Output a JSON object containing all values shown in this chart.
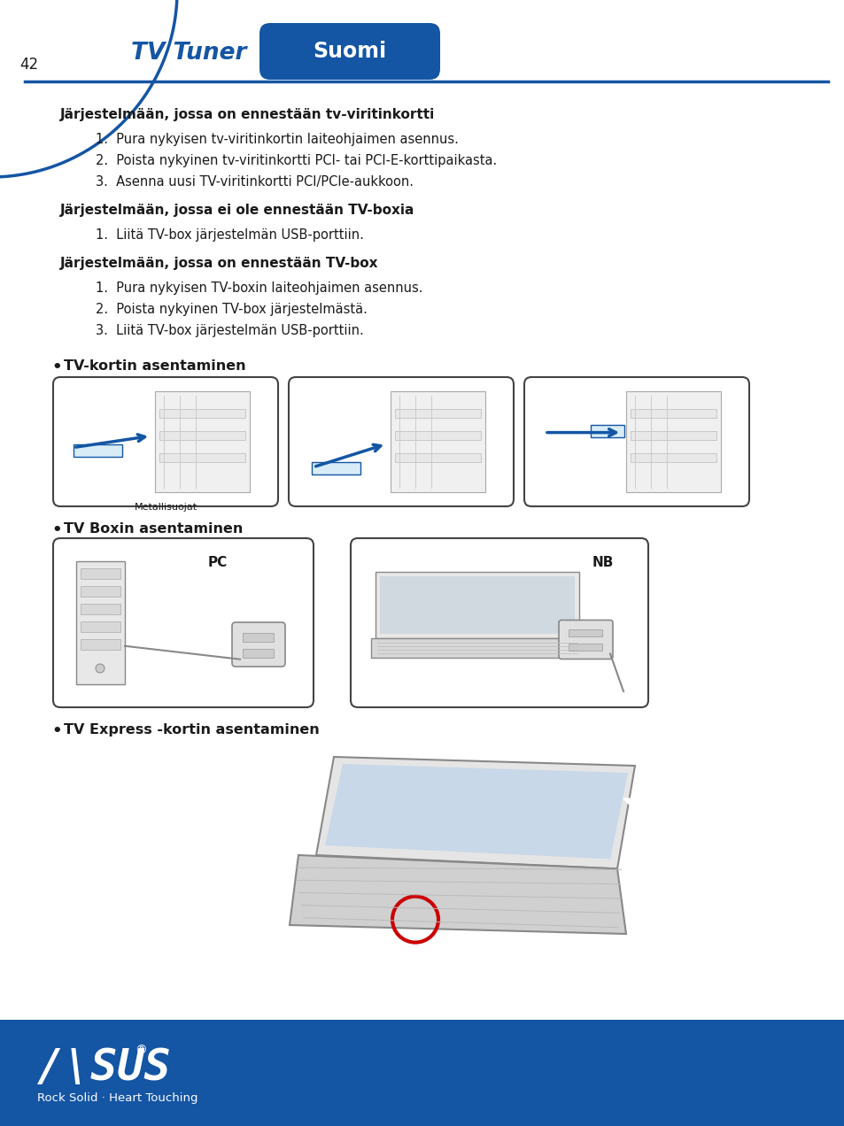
{
  "bg_color": "#ffffff",
  "blue": "#1455a4",
  "white": "#ffffff",
  "black": "#1a1a1a",
  "red": "#cc0000",
  "light_gray": "#f5f5f5",
  "mid_gray": "#e0e0e0",
  "dark_gray": "#888888",
  "page_number": "42",
  "title_tv_tuner": "TV Tuner",
  "title_suomi": "Suomi",
  "section1_header": "Järjestelmään, jossa on ennestään tv-viritinkortti",
  "section1_items": [
    "1.  Pura nykyisen tv-viritinkortin laiteohjaimen asennus.",
    "2.  Poista nykyinen tv-viritinkortti PCI- tai PCI-E-korttipaikasta.",
    "3.  Asenna uusi TV-viritinkortti PCI/PCIe-aukkoon."
  ],
  "section2_header": "Järjestelmään, jossa ei ole ennestään TV-boxia",
  "section2_items": [
    "1.  Liitä TV-box järjestelmän USB-porttiin."
  ],
  "section3_header": "Järjestelmään, jossa on ennestään TV-box",
  "section3_items": [
    "1.  Pura nykyisen TV-boxin laiteohjaimen asennus.",
    "2.  Poista nykyinen TV-box järjestelmästä.",
    "3.  Liitä TV-box järjestelmän USB-porttiin."
  ],
  "bullet1_header": "TV-kortin asentaminen",
  "img1_label": "Metallisuojat",
  "bullet2_header": "TV Boxin asentaminen",
  "img2_label1": "PC",
  "img2_label2": "NB",
  "bullet3_header": "TV Express -kortin asentaminen",
  "footer_tagline": "Rock Solid · Heart Touching"
}
